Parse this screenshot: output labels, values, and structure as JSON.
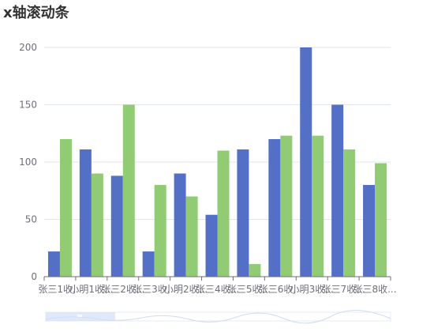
{
  "title": "x轴滚动条",
  "colors": {
    "series_a": "#5470c6",
    "series_b": "#91cc75",
    "axis": "#6e7079",
    "grid": "#e0e6f1",
    "slider_fill": "#d3dff8",
    "slider_border": "#e6ebf5"
  },
  "chart_data": {
    "type": "bar",
    "categories": [
      "张三1收...",
      "小明1收...",
      "张三2收...",
      "张三3收...",
      "小明2收...",
      "张三4收...",
      "张三5收...",
      "张三6收...",
      "小明3收...",
      "张三7收...",
      "张三8收..."
    ],
    "series": [
      {
        "values": [
          22,
          111,
          88,
          22,
          90,
          54,
          111,
          120,
          200,
          150,
          80
        ]
      },
      {
        "values": [
          120,
          90,
          150,
          80,
          70,
          110,
          11,
          123,
          123,
          111,
          99
        ]
      }
    ],
    "ylim": [
      0,
      200
    ],
    "yticks": [
      0,
      50,
      100,
      150,
      200
    ],
    "grid": true,
    "legend": "none",
    "x_scroll_slider": true
  }
}
